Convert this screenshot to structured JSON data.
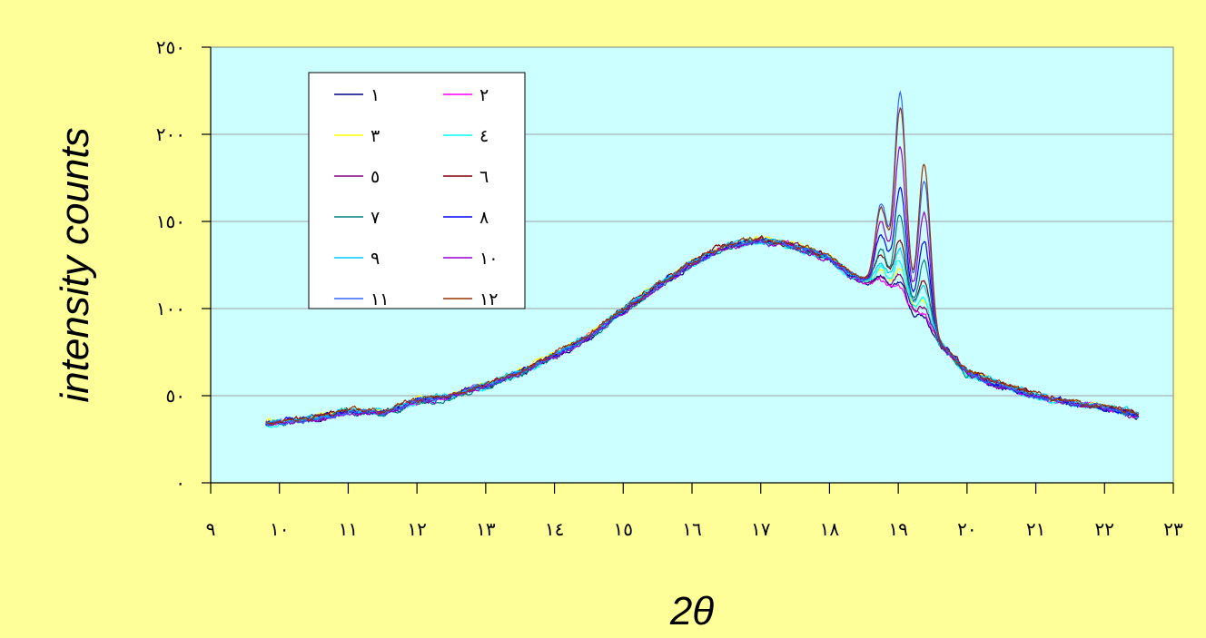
{
  "chart_data": {
    "type": "line",
    "title": "",
    "xlabel": "2θ",
    "ylabel": "intensity counts",
    "xlim": [
      9,
      23
    ],
    "ylim": [
      0,
      250
    ],
    "grid": "horizontal",
    "legend_position": "top-left",
    "background_color": "#CCFFFF",
    "page_color": "#FFFF99",
    "xticks": [
      {
        "value": 9,
        "label": "٩"
      },
      {
        "value": 10,
        "label": "١٠"
      },
      {
        "value": 11,
        "label": "١١"
      },
      {
        "value": 12,
        "label": "١٢"
      },
      {
        "value": 13,
        "label": "١٣"
      },
      {
        "value": 14,
        "label": "١٤"
      },
      {
        "value": 15,
        "label": "١٥"
      },
      {
        "value": 16,
        "label": "١٦"
      },
      {
        "value": 17,
        "label": "١٧"
      },
      {
        "value": 18,
        "label": "١٨"
      },
      {
        "value": 19,
        "label": "١٩"
      },
      {
        "value": 20,
        "label": "٢٠"
      },
      {
        "value": 21,
        "label": "٢١"
      },
      {
        "value": 22,
        "label": "٢٢"
      },
      {
        "value": 23,
        "label": "٢٣"
      }
    ],
    "yticks": [
      {
        "value": 0,
        "label": "٠"
      },
      {
        "value": 50,
        "label": "٥٠"
      },
      {
        "value": 100,
        "label": "١٠٠"
      },
      {
        "value": 150,
        "label": "١٥٠"
      },
      {
        "value": 200,
        "label": "٢٠٠"
      },
      {
        "value": 250,
        "label": "٢٥٠"
      }
    ],
    "base_curve": {
      "x": [
        9.8,
        10.5,
        11.0,
        11.5,
        12.0,
        12.5,
        13.0,
        13.5,
        14.0,
        14.5,
        15.0,
        15.5,
        16.0,
        16.5,
        17.0,
        17.5,
        18.0,
        18.3,
        18.6,
        18.8,
        19.0,
        19.2,
        19.4,
        19.6,
        19.8,
        20.0,
        20.5,
        21.0,
        21.5,
        22.0,
        22.5
      ],
      "y": [
        34,
        37,
        41,
        40,
        47,
        50,
        56,
        63,
        73,
        84,
        99,
        113,
        126,
        136,
        139,
        136,
        129,
        120,
        114,
        112,
        105,
        98,
        90,
        80,
        72,
        63,
        56,
        50,
        46,
        43,
        39
      ]
    },
    "peak_centers": [
      18.75,
      19.03,
      19.38
    ],
    "peak_width": 0.085,
    "series": [
      {
        "name": "١",
        "color": "#000080",
        "peaks": [
          8,
          12,
          6
        ]
      },
      {
        "name": "٢",
        "color": "#FF00FF",
        "peaks": [
          3,
          8,
          5
        ]
      },
      {
        "name": "٣",
        "color": "#FFFF00",
        "peaks": [
          10,
          18,
          12
        ]
      },
      {
        "name": "٤",
        "color": "#00FFFF",
        "peaks": [
          12,
          24,
          15
        ]
      },
      {
        "name": "٥",
        "color": "#800080",
        "peaks": [
          6,
          15,
          10
        ]
      },
      {
        "name": "٦",
        "color": "#800000",
        "peaks": [
          18,
          35,
          25
        ]
      },
      {
        "name": "٧",
        "color": "#008080",
        "peaks": [
          22,
          50,
          38
        ]
      },
      {
        "name": "٨",
        "color": "#0000FF",
        "peaks": [
          30,
          65,
          48
        ]
      },
      {
        "name": "٩",
        "color": "#00CCFF",
        "peaks": [
          14,
          28,
          20
        ]
      },
      {
        "name": "١٠",
        "color": "#9900CC",
        "peaks": [
          38,
          88,
          65
        ]
      },
      {
        "name": "١١",
        "color": "#3366FF",
        "peaks": [
          48,
          120,
          82
        ]
      },
      {
        "name": "١٢",
        "color": "#993300",
        "peaks": [
          45,
          110,
          92
        ]
      }
    ]
  }
}
